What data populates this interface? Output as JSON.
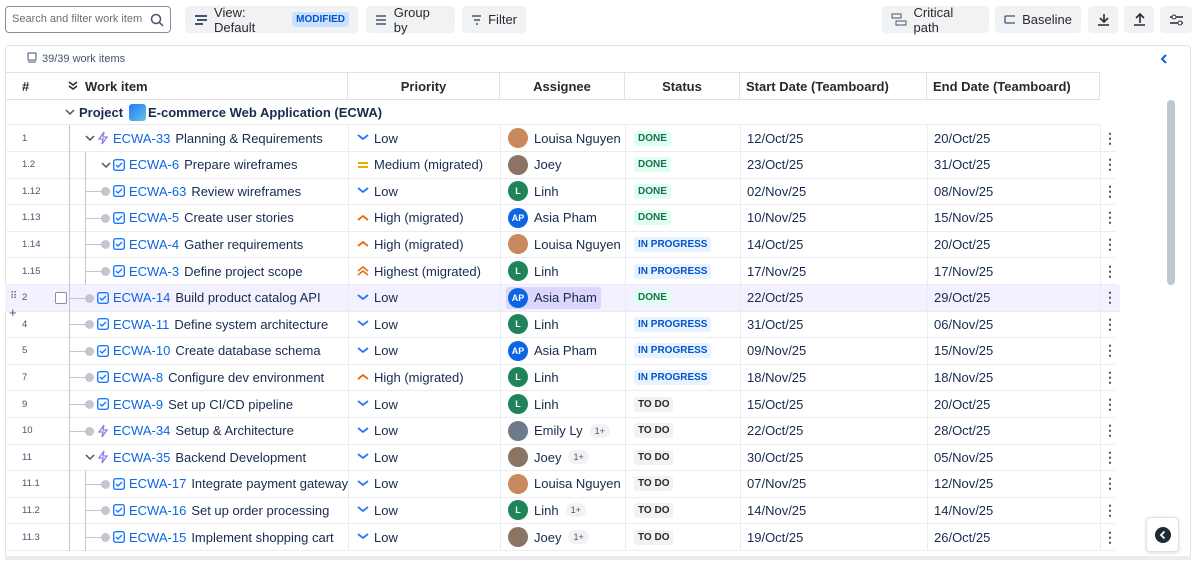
{
  "toolbar": {
    "search_placeholder": "Search and filter work item",
    "view": "View: Default",
    "modified": "MODIFIED",
    "group_by": "Group by",
    "filter": "Filter",
    "critical_path": "Critical path",
    "baseline": "Baseline"
  },
  "summary": {
    "count": "39/39 work items"
  },
  "columns": [
    "#",
    "Work item",
    "Priority",
    "Assignee",
    "Status",
    "Start Date (Teamboard)",
    "End Date (Teamboard)"
  ],
  "project": {
    "label": "Project",
    "name": "E-commerce Web Application (ECWA)"
  },
  "rows": [
    {
      "number": "1",
      "key": "ECWA-33",
      "title": "Planning & Requirements",
      "priority": "Low",
      "assignee": "Louisa Nguyen",
      "status": "DONE",
      "start": "12/Oct/25",
      "end": "20/Oct/25"
    },
    {
      "number": "1.2",
      "key": "ECWA-6",
      "title": "Prepare wireframes",
      "priority": "Medium (migrated)",
      "assignee": "Joey",
      "status": "DONE",
      "start": "23/Oct/25",
      "end": "31/Oct/25"
    },
    {
      "number": "1.12",
      "key": "ECWA-63",
      "title": "Review wireframes",
      "priority": "Low",
      "assignee": "Linh",
      "initials": "L",
      "status": "DONE",
      "start": "02/Nov/25",
      "end": "08/Nov/25"
    },
    {
      "number": "1.13",
      "key": "ECWA-5",
      "title": "Create user stories",
      "priority": "High (migrated)",
      "assignee": "Asia Pham",
      "initials": "AP",
      "status": "DONE",
      "start": "10/Nov/25",
      "end": "15/Nov/25"
    },
    {
      "number": "1.14",
      "key": "ECWA-4",
      "title": "Gather requirements",
      "priority": "High (migrated)",
      "assignee": "Louisa Nguyen",
      "status": "IN PROGRESS",
      "start": "14/Oct/25",
      "end": "20/Oct/25"
    },
    {
      "number": "1.15",
      "key": "ECWA-3",
      "title": "Define project scope",
      "priority": "Highest (migrated)",
      "assignee": "Linh",
      "initials": "L",
      "status": "IN PROGRESS",
      "start": "17/Nov/25",
      "end": "17/Nov/25"
    },
    {
      "number": "2",
      "key": "ECWA-14",
      "title": "Build product catalog API",
      "priority": "Low",
      "assignee": "Asia Pham",
      "initials": "AP",
      "status": "DONE",
      "start": "22/Oct/25",
      "end": "29/Oct/25"
    },
    {
      "number": "4",
      "key": "ECWA-11",
      "title": "Define system architecture",
      "priority": "Low",
      "assignee": "Linh",
      "initials": "L",
      "status": "IN PROGRESS",
      "start": "31/Oct/25",
      "end": "06/Nov/25"
    },
    {
      "number": "5",
      "key": "ECWA-10",
      "title": "Create database schema",
      "priority": "Low",
      "assignee": "Asia Pham",
      "initials": "AP",
      "status": "IN PROGRESS",
      "start": "09/Nov/25",
      "end": "15/Nov/25"
    },
    {
      "number": "7",
      "key": "ECWA-8",
      "title": "Configure dev environment",
      "priority": "High (migrated)",
      "assignee": "Linh",
      "initials": "L",
      "status": "IN PROGRESS",
      "start": "18/Nov/25",
      "end": "18/Nov/25"
    },
    {
      "number": "9",
      "key": "ECWA-9",
      "title": "Set up CI/CD pipeline",
      "priority": "Low",
      "assignee": "Linh",
      "initials": "L",
      "status": "TO DO",
      "start": "15/Oct/25",
      "end": "20/Oct/25"
    },
    {
      "number": "10",
      "key": "ECWA-34",
      "title": "Setup & Architecture",
      "priority": "Low",
      "assignee": "Emily Ly",
      "extra": "1+",
      "status": "TO DO",
      "start": "22/Oct/25",
      "end": "28/Oct/25"
    },
    {
      "number": "11",
      "key": "ECWA-35",
      "title": "Backend Development",
      "priority": "Low",
      "assignee": "Joey",
      "extra": "1+",
      "status": "TO DO",
      "start": "30/Oct/25",
      "end": "05/Nov/25"
    },
    {
      "number": "11.1",
      "key": "ECWA-17",
      "title": "Integrate payment gateway",
      "priority": "Low",
      "assignee": "Louisa Nguyen",
      "status": "TO DO",
      "start": "07/Nov/25",
      "end": "12/Nov/25"
    },
    {
      "number": "11.2",
      "key": "ECWA-16",
      "title": "Set up order processing",
      "priority": "Low",
      "assignee": "Linh",
      "initials": "L",
      "extra": "1+",
      "status": "TO DO",
      "start": "14/Nov/25",
      "end": "14/Nov/25"
    },
    {
      "number": "11.3",
      "key": "ECWA-15",
      "title": "Implement shopping cart",
      "priority": "Low",
      "assignee": "Joey",
      "extra": "1+",
      "status": "TO DO",
      "start": "19/Oct/25",
      "end": "26/Oct/25"
    }
  ]
}
